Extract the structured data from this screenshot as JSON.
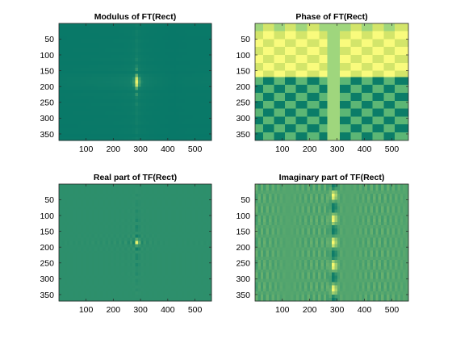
{
  "figure": {
    "background": "#ffffff"
  },
  "chart_data": [
    {
      "type": "heatmap",
      "title": "Modulus of FT(Rect)",
      "kind": "modulus",
      "xlim": [
        0.5,
        560.5
      ],
      "ylim": [
        0.5,
        370.5
      ],
      "y_reversed": true,
      "grid": false,
      "colormap": "parula",
      "xticks": [
        100,
        200,
        300,
        400,
        500
      ],
      "yticks": [
        50,
        100,
        150,
        200,
        250,
        300,
        350
      ],
      "peak_center": [
        288,
        185
      ],
      "dominant_color": "#0e7f6a"
    },
    {
      "type": "heatmap",
      "title": "Phase of FT(Rect)",
      "kind": "phase",
      "xlim": [
        0.5,
        560.5
      ],
      "ylim": [
        0.5,
        370.5
      ],
      "y_reversed": true,
      "grid": false,
      "colormap": "parula",
      "xticks": [
        100,
        200,
        300,
        400,
        500
      ],
      "yticks": [
        50,
        100,
        150,
        200,
        250,
        300,
        350
      ],
      "column_edges": [
        0,
        30,
        70,
        110,
        150,
        190,
        235,
        265,
        310,
        350,
        390,
        430,
        470,
        510,
        560
      ],
      "row_edges": [
        0,
        25,
        50,
        75,
        100,
        125,
        150,
        170,
        195,
        220,
        245,
        270,
        295,
        320,
        345,
        370
      ],
      "colors": {
        "high": "#f9fb7d",
        "high_alt": "#d3e56a",
        "mid": "#9fd67d",
        "low": "#0b7d68",
        "low_alt": "#5cb675"
      }
    },
    {
      "type": "heatmap",
      "title": "Real part of TF(Rect)",
      "kind": "real",
      "xlim": [
        0.5,
        560.5
      ],
      "ylim": [
        0.5,
        370.5
      ],
      "y_reversed": true,
      "grid": false,
      "colormap": "parula",
      "xticks": [
        100,
        200,
        300,
        400,
        500
      ],
      "yticks": [
        50,
        100,
        150,
        200,
        250,
        300,
        350
      ],
      "peak_center": [
        288,
        185
      ],
      "dominant_color": "#3a9466"
    },
    {
      "type": "heatmap",
      "title": "Imaginary part of TF(Rect)",
      "kind": "imag",
      "xlim": [
        0.5,
        560.5
      ],
      "ylim": [
        0.5,
        370.5
      ],
      "y_reversed": true,
      "grid": false,
      "colormap": "parula",
      "xticks": [
        100,
        200,
        300,
        400,
        500
      ],
      "yticks": [
        50,
        100,
        150,
        200,
        250,
        300,
        350
      ],
      "peak_center": [
        288,
        185
      ],
      "dominant_color": "#8cc06a"
    }
  ]
}
